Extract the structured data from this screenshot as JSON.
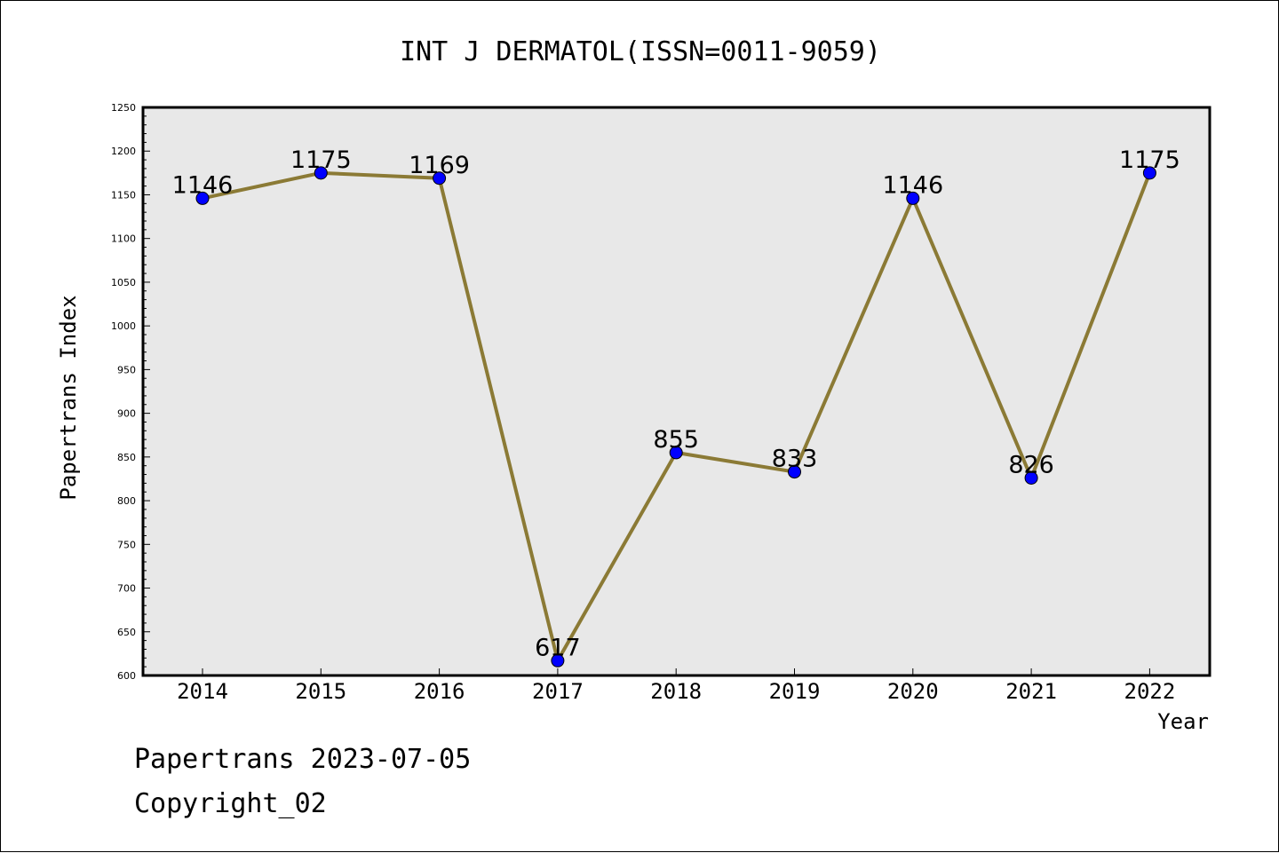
{
  "chart_data": {
    "type": "line",
    "title": "INT J DERMATOL(ISSN=0011-9059)",
    "xlabel": "Year",
    "ylabel": "Papertrans Index",
    "categories": [
      "2014",
      "2015",
      "2016",
      "2017",
      "2018",
      "2019",
      "2020",
      "2021",
      "2022"
    ],
    "series": [
      {
        "values": [
          1146,
          1175,
          1169,
          617,
          855,
          833,
          1146,
          826,
          1175
        ]
      }
    ],
    "data_labels": [
      "1146",
      "1175",
      "1169",
      "617",
      "855",
      "833",
      "1146",
      "826",
      "1175"
    ],
    "ylim": [
      600,
      1250
    ],
    "y_ticks": [
      600,
      650,
      700,
      750,
      800,
      850,
      900,
      950,
      1000,
      1050,
      1100,
      1150,
      1200,
      1250
    ],
    "y_tick_labels": [
      "600",
      "650",
      "700",
      "750",
      "800",
      "850",
      "900",
      "950",
      "1000",
      "1050",
      "1100",
      "1150",
      "1200",
      "1250"
    ],
    "line_color": "#8B7A35",
    "marker_color": "#0000ff",
    "plot_background": "#e8e8e8",
    "grid": false,
    "legend": "none"
  },
  "footer": {
    "line1": "Papertrans 2023-07-05",
    "line2": "Copyright_02"
  }
}
